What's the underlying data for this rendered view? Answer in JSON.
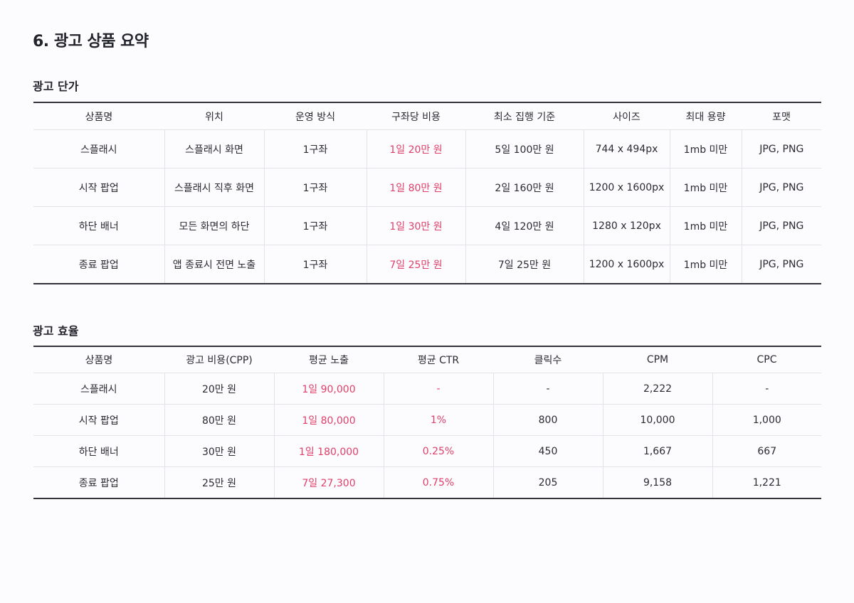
{
  "page_title": "6. 광고 상품 요약",
  "price_section": {
    "title": "광고 단가",
    "headers": [
      "상품명",
      "위치",
      "운영 방식",
      "구좌당 비용",
      "최소 집행 기준",
      "사이즈",
      "최대 용량",
      "포맷"
    ],
    "rows": [
      [
        "스플래시",
        "스플래시 화면",
        "1구좌",
        "1일 20만 원",
        "5일 100만 원",
        "744 x 494px",
        "1mb 미만",
        "JPG, PNG"
      ],
      [
        "시작 팝업",
        "스플래시 직후 화면",
        "1구좌",
        "1일 80만 원",
        "2일 160만 원",
        "1200 x 1600px",
        "1mb 미만",
        "JPG, PNG"
      ],
      [
        "하단 배너",
        "모든 화면의 하단",
        "1구좌",
        "1일 30만 원",
        "4일 120만 원",
        "1280 x 120px",
        "1mb 미만",
        "JPG, PNG"
      ],
      [
        "종료 팝업",
        "앱 종료시 전면 노출",
        "1구좌",
        "7일 25만 원",
        "7일 25만 원",
        "1200 x 1600px",
        "1mb 미만",
        "JPG, PNG"
      ]
    ]
  },
  "efficiency_section": {
    "title": "광고 효율",
    "headers": [
      "상품명",
      "광고 비용(CPP)",
      "평균 노출",
      "평균 CTR",
      "클릭수",
      "CPM",
      "CPC"
    ],
    "rows": [
      [
        "스플래시",
        "20만 원",
        "1일 90,000",
        "-",
        "-",
        "2,222",
        "-"
      ],
      [
        "시작 팝업",
        "80만 원",
        "1일 80,000",
        "1%",
        "800",
        "10,000",
        "1,000"
      ],
      [
        "하단 배너",
        "30만 원",
        "1일 180,000",
        "0.25%",
        "450",
        "1,667",
        "667"
      ],
      [
        "종료 팝업",
        "25만 원",
        "7일 27,300",
        "0.75%",
        "205",
        "9,158",
        "1,221"
      ]
    ]
  },
  "colors": {
    "highlight": "#e0406a",
    "text": "#2b2b33",
    "rule": "#33333b",
    "background": "#fcfbfd"
  }
}
